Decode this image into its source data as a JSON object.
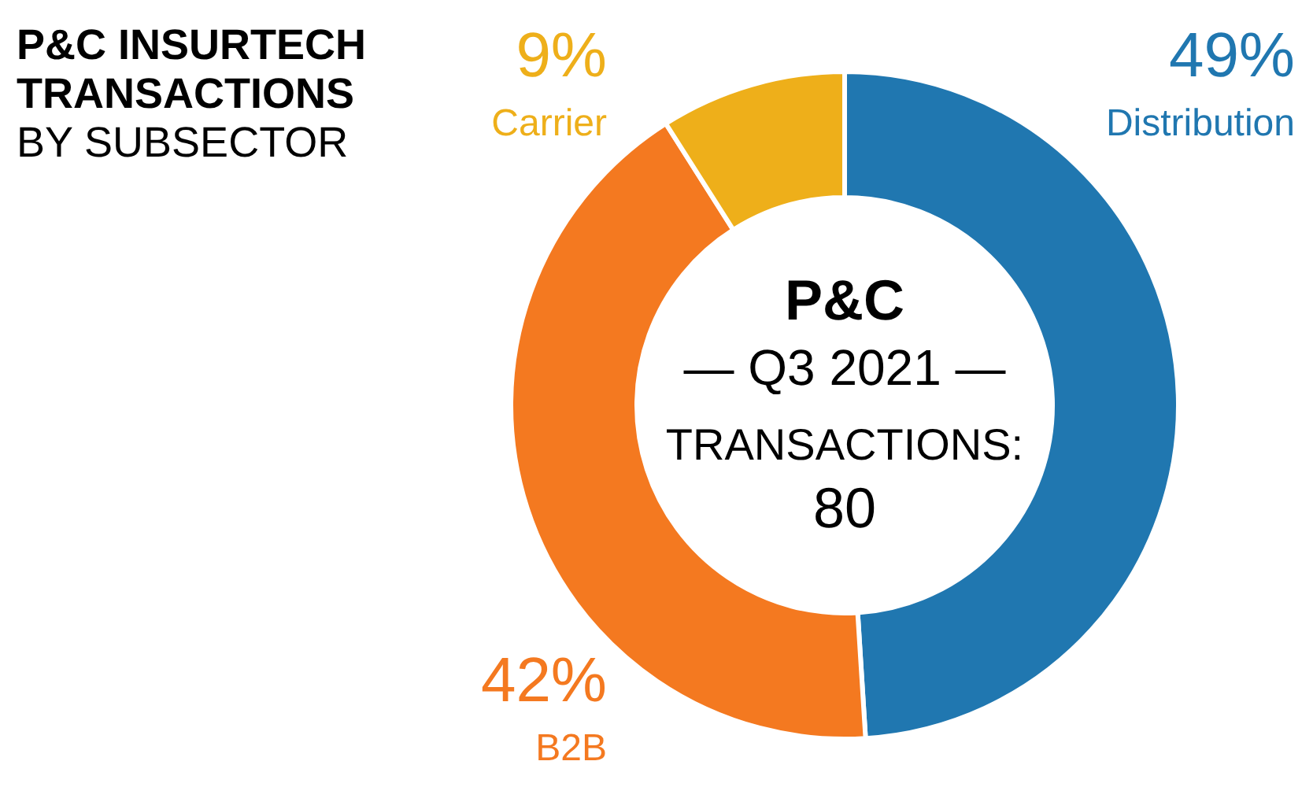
{
  "chart_data": {
    "type": "donut",
    "title": "P&C INSURTECH TRANSACTIONS",
    "subtitle": "BY SUBSECTOR",
    "categories": [
      "Distribution",
      "B2B",
      "Carrier"
    ],
    "values": [
      49,
      42,
      9
    ],
    "colors": [
      "#2077b0",
      "#f47920",
      "#eeaf1a"
    ],
    "value_labels": [
      "49%",
      "42%",
      "9%"
    ],
    "annotations": [
      "P&C",
      "— Q3 2021 —",
      "TRANSACTIONS:",
      "80"
    ]
  }
}
